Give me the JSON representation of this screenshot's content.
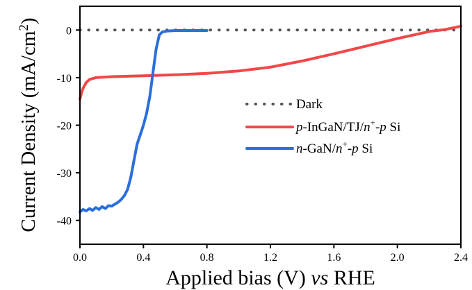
{
  "chart_data": {
    "type": "line",
    "xlabel": "Applied bias (V) vs RHE",
    "xlabel_parts": [
      {
        "text": "Applied bias (V) ",
        "italic": false
      },
      {
        "text": "vs",
        "italic": true
      },
      {
        "text": " RHE",
        "italic": false
      }
    ],
    "ylabel": "Current Density (mA/cm2)",
    "xlim": [
      0.0,
      2.4
    ],
    "ylim": [
      -45,
      5
    ],
    "xticks": [
      0.0,
      0.4,
      0.8,
      1.2,
      1.6,
      2.0,
      2.4
    ],
    "xtick_labels": [
      "0.0",
      "0.4",
      "0.8",
      "1.2",
      "1.6",
      "2.0",
      "2.4"
    ],
    "yticks": [
      0,
      -10,
      -20,
      -30,
      -40
    ],
    "ytick_labels": [
      "0",
      "-10",
      "-20",
      "-30",
      "-40"
    ],
    "grid": false,
    "legend_position": "center-right",
    "series": [
      {
        "name": "Dark",
        "legend_parts": [
          {
            "text": "Dark",
            "style": "normal"
          }
        ],
        "color": "#555555",
        "dash": "dotted",
        "x": [
          0.0,
          2.4
        ],
        "y": [
          0.0,
          0.0
        ]
      },
      {
        "name": "p-InGaN/TJ/n+-p Si",
        "legend_parts": [
          {
            "text": "p",
            "style": "italic"
          },
          {
            "text": "-InGaN/TJ/",
            "style": "normal"
          },
          {
            "text": "n",
            "style": "italic"
          },
          {
            "text": "+",
            "style": "sup"
          },
          {
            "text": "-",
            "style": "normal"
          },
          {
            "text": "p",
            "style": "italic"
          },
          {
            "text": " Si",
            "style": "normal"
          }
        ],
        "color": "#f04848",
        "dash": "solid",
        "x": [
          0.0,
          0.01,
          0.02,
          0.04,
          0.06,
          0.1,
          0.2,
          0.4,
          0.6,
          0.8,
          1.0,
          1.2,
          1.4,
          1.6,
          1.8,
          2.0,
          2.2,
          2.3,
          2.4
        ],
        "y": [
          -14.5,
          -13.2,
          -12.2,
          -11.0,
          -10.4,
          -10.0,
          -9.8,
          -9.6,
          -9.4,
          -9.1,
          -8.6,
          -7.8,
          -6.5,
          -5.0,
          -3.4,
          -1.8,
          -0.3,
          0.1,
          0.8
        ]
      },
      {
        "name": "n-GaN/n+-p Si",
        "legend_parts": [
          {
            "text": "n",
            "style": "italic"
          },
          {
            "text": "-GaN/",
            "style": "normal"
          },
          {
            "text": "n",
            "style": "italic"
          },
          {
            "text": "+",
            "style": "sup"
          },
          {
            "text": "-",
            "style": "normal"
          },
          {
            "text": "p",
            "style": "italic"
          },
          {
            "text": " Si",
            "style": "normal"
          }
        ],
        "color": "#2a6fdb",
        "dash": "solid",
        "x": [
          0.0,
          0.02,
          0.04,
          0.06,
          0.08,
          0.1,
          0.12,
          0.14,
          0.16,
          0.18,
          0.2,
          0.22,
          0.24,
          0.26,
          0.28,
          0.3,
          0.32,
          0.34,
          0.36,
          0.38,
          0.4,
          0.42,
          0.44,
          0.46,
          0.48,
          0.5,
          0.52,
          0.55,
          0.6,
          0.7,
          0.8
        ],
        "y": [
          -38.2,
          -37.7,
          -38.0,
          -37.5,
          -37.9,
          -37.3,
          -37.7,
          -37.1,
          -37.5,
          -36.9,
          -37.0,
          -36.6,
          -36.2,
          -35.6,
          -34.8,
          -33.5,
          -31.0,
          -27.5,
          -24.0,
          -22.0,
          -20.0,
          -17.5,
          -14.0,
          -9.0,
          -4.0,
          -1.0,
          -0.4,
          -0.2,
          -0.1,
          -0.1,
          -0.1
        ]
      }
    ]
  }
}
